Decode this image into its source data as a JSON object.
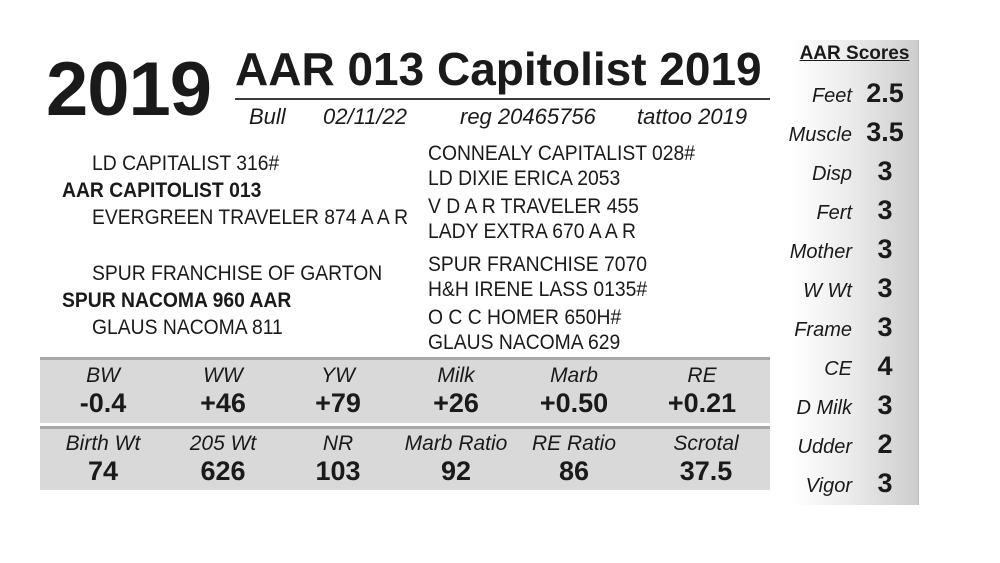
{
  "lot_number": "2019",
  "title": "AAR 013 Capitolist 2019",
  "meta": {
    "sex": "Bull",
    "birth_date": "02/11/22",
    "reg": "reg 20465756",
    "tattoo": "tattoo 2019"
  },
  "pedigree": {
    "sire_side": {
      "sire_sire": "LD CAPITALIST 316#",
      "sire": "AAR CAPITOLIST 013",
      "sire_dam": "EVERGREEN TRAVELER 874 A A R",
      "ggsires": [
        "CONNEALY CAPITALIST 028#",
        "LD DIXIE ERICA 2053",
        "V D A R TRAVELER 455",
        "LADY EXTRA 670 A A R"
      ]
    },
    "dam_side": {
      "dam_sire": "SPUR FRANCHISE OF GARTON",
      "dam": "SPUR NACOMA 960 AAR",
      "dam_dam": "GLAUS NACOMA 811",
      "ggsires": [
        "SPUR FRANCHISE 7070",
        "H&H IRENE LASS 0135#",
        "O C C HOMER 650H#",
        "GLAUS NACOMA 629"
      ]
    }
  },
  "epds": [
    {
      "label": "BW",
      "value": "-0.4"
    },
    {
      "label": "WW",
      "value": "+46"
    },
    {
      "label": "YW",
      "value": "+79"
    },
    {
      "label": "Milk",
      "value": "+26"
    },
    {
      "label": "Marb",
      "value": "+0.50"
    },
    {
      "label": "RE",
      "value": "+0.21"
    }
  ],
  "actuals": [
    {
      "label": "Birth Wt",
      "value": "74"
    },
    {
      "label": "205 Wt",
      "value": "626"
    },
    {
      "label": "NR",
      "value": "103"
    },
    {
      "label": "Marb Ratio",
      "value": "92"
    },
    {
      "label": "RE Ratio",
      "value": "86"
    },
    {
      "label": "Scrotal",
      "value": "37.5"
    }
  ],
  "scores": {
    "heading": "AAR Scores",
    "items": [
      {
        "label": "Feet",
        "value": "2.5"
      },
      {
        "label": "Muscle",
        "value": "3.5"
      },
      {
        "label": "Disp",
        "value": "3"
      },
      {
        "label": "Fert",
        "value": "3"
      },
      {
        "label": "Mother",
        "value": "3"
      },
      {
        "label": "W Wt",
        "value": "3"
      },
      {
        "label": "Frame",
        "value": "3"
      },
      {
        "label": "CE",
        "value": "4"
      },
      {
        "label": "D Milk",
        "value": "3"
      },
      {
        "label": "Udder",
        "value": "2"
      },
      {
        "label": "Vigor",
        "value": "3"
      }
    ]
  }
}
